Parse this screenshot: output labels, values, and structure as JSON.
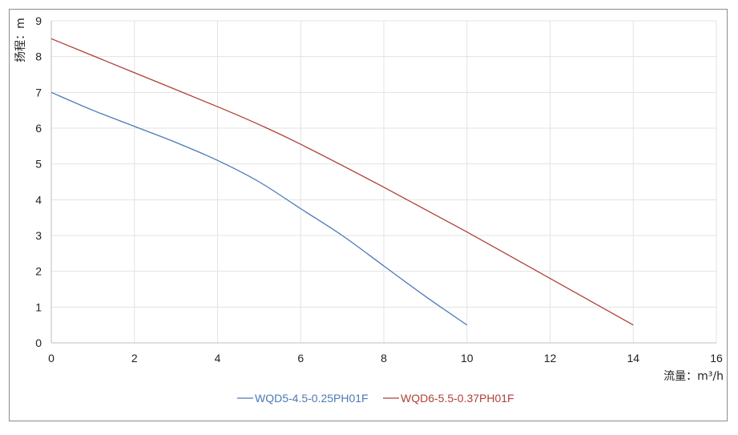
{
  "chart_data": {
    "type": "line",
    "xlabel": "流量：m³/h",
    "ylabel": "扬程：m",
    "xlim": [
      0,
      16
    ],
    "ylim": [
      0,
      9
    ],
    "x_ticks": [
      "0",
      "2",
      "4",
      "6",
      "8",
      "10",
      "12",
      "14",
      "16"
    ],
    "y_ticks": [
      "0",
      "1",
      "2",
      "3",
      "4",
      "5",
      "6",
      "7",
      "8",
      "9"
    ],
    "grid": true,
    "legend_position": "bottom",
    "series": [
      {
        "name": "WQD5-4.5-0.25PH01F",
        "color": "#4a7ab5",
        "x": [
          0,
          1,
          2,
          3,
          4,
          5,
          6,
          7,
          8,
          9,
          10
        ],
        "y": [
          7.0,
          6.5,
          6.05,
          5.6,
          5.1,
          4.5,
          3.75,
          3.0,
          2.15,
          1.3,
          0.5
        ]
      },
      {
        "name": "WQD6-5.5-0.37PH01F",
        "color": "#b0403a",
        "x": [
          0,
          2,
          4,
          5,
          6,
          8,
          10,
          12,
          14
        ],
        "y": [
          8.5,
          7.55,
          6.6,
          6.1,
          5.55,
          4.35,
          3.1,
          1.8,
          0.5
        ]
      }
    ]
  }
}
